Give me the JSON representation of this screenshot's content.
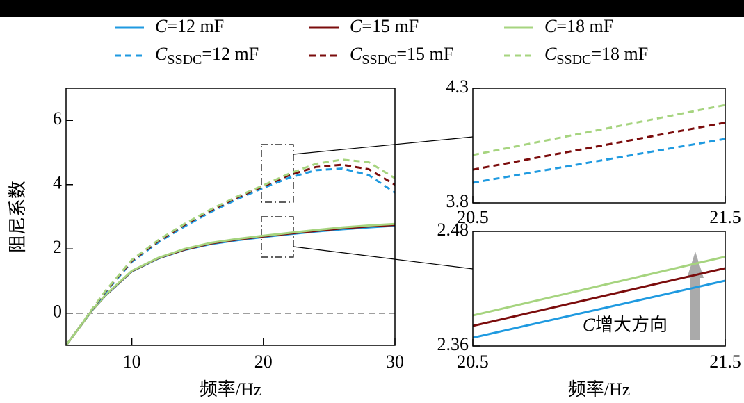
{
  "chart_data": [
    {
      "type": "line",
      "xlabel": "频率/Hz",
      "ylabel": "阻尼系数",
      "x": [
        5,
        6,
        7,
        8,
        10,
        12,
        14,
        16,
        18,
        20,
        22,
        24,
        26,
        28,
        30
      ],
      "xlim": [
        5,
        30
      ],
      "xticks": [
        10,
        20,
        30
      ],
      "ylim": [
        -1,
        7
      ],
      "yticks": [
        0,
        2,
        4,
        6
      ],
      "hline": 0,
      "series": [
        {
          "name": "C=12 mF",
          "color": "#1f9ae0",
          "linestyle": "solid",
          "values": [
            -1,
            -0.45,
            0.1,
            0.55,
            1.3,
            1.7,
            1.97,
            2.15,
            2.27,
            2.37,
            2.46,
            2.54,
            2.61,
            2.67,
            2.72
          ]
        },
        {
          "name": "C=15 mF",
          "color": "#7b0c0c",
          "linestyle": "solid",
          "values": [
            -1,
            -0.45,
            0.1,
            0.56,
            1.31,
            1.71,
            1.98,
            2.17,
            2.29,
            2.39,
            2.48,
            2.56,
            2.64,
            2.7,
            2.75
          ]
        },
        {
          "name": "C=18 mF",
          "color": "#a6d47f",
          "linestyle": "solid",
          "values": [
            -1,
            -0.45,
            0.1,
            0.57,
            1.32,
            1.72,
            2.0,
            2.19,
            2.31,
            2.41,
            2.5,
            2.59,
            2.67,
            2.73,
            2.78
          ]
        },
        {
          "name": "CSSDC=12 mF",
          "color": "#1f9ae0",
          "linestyle": "dashed",
          "values": [
            -1,
            -0.45,
            0.12,
            0.65,
            1.6,
            2.2,
            2.7,
            3.15,
            3.55,
            3.9,
            4.22,
            4.45,
            4.5,
            4.3,
            3.75
          ]
        },
        {
          "name": "CSSDC=15 mF",
          "color": "#7b0c0c",
          "linestyle": "dashed",
          "values": [
            -1,
            -0.45,
            0.13,
            0.68,
            1.63,
            2.24,
            2.75,
            3.2,
            3.6,
            3.95,
            4.3,
            4.55,
            4.62,
            4.48,
            4.0
          ]
        },
        {
          "name": "CSSDC=18 mF",
          "color": "#a6d47f",
          "linestyle": "dashed",
          "values": [
            -1,
            -0.45,
            0.14,
            0.7,
            1.66,
            2.27,
            2.78,
            3.23,
            3.63,
            3.98,
            4.35,
            4.65,
            4.78,
            4.7,
            4.2
          ]
        }
      ]
    },
    {
      "type": "line",
      "x": [
        20.5,
        21.5
      ],
      "xlim": [
        20.5,
        21.5
      ],
      "xticks": [
        20.5,
        21.5
      ],
      "ylim": [
        3.8,
        4.3
      ],
      "yticks": [
        3.8,
        4.3
      ],
      "series": [
        {
          "color": "#1f9ae0",
          "linestyle": "dashed",
          "values": [
            3.888,
            4.079
          ]
        },
        {
          "color": "#7b0c0c",
          "linestyle": "dashed",
          "values": [
            3.945,
            4.15
          ]
        },
        {
          "color": "#a6d47f",
          "linestyle": "dashed",
          "values": [
            4.009,
            4.227
          ]
        }
      ]
    },
    {
      "type": "line",
      "xlabel": "频率/Hz",
      "x": [
        20.5,
        21.5
      ],
      "xlim": [
        20.5,
        21.5
      ],
      "xticks": [
        20.5,
        21.5
      ],
      "ylim": [
        2.36,
        2.48
      ],
      "yticks": [
        2.36,
        2.48
      ],
      "annotation": {
        "variable": "C",
        "text": "增大方向"
      },
      "series": [
        {
          "color": "#1f9ae0",
          "linestyle": "solid",
          "values": [
            2.3687,
            2.4284
          ]
        },
        {
          "color": "#7b0c0c",
          "linestyle": "solid",
          "values": [
            2.3811,
            2.4415
          ]
        },
        {
          "color": "#a6d47f",
          "linestyle": "solid",
          "values": [
            2.392,
            2.4535
          ]
        }
      ]
    }
  ]
}
